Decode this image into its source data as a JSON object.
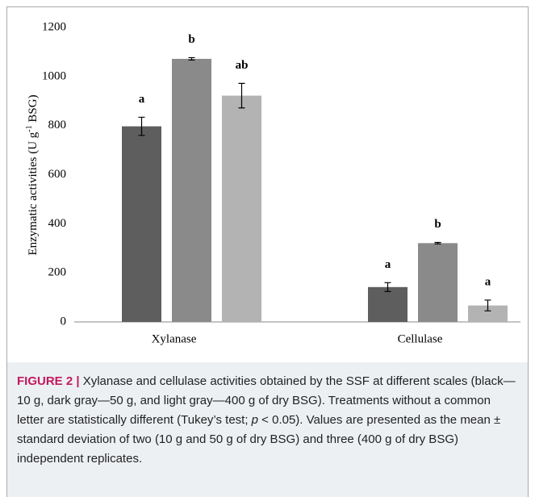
{
  "chart_data": {
    "type": "bar",
    "y_label": [
      "Enzymatic activities (U g",
      "-1",
      " BSG)"
    ],
    "categories": [
      "Xylanase",
      "Cellulase"
    ],
    "series": [
      {
        "color": "#5e5e5e",
        "values": [
          797,
          142
        ],
        "errors": [
          37,
          18
        ],
        "letters": [
          "a",
          "a"
        ]
      },
      {
        "color": "#8a8a8a",
        "values": [
          1072,
          321
        ],
        "errors": [
          5,
          3
        ],
        "letters": [
          "b",
          "b"
        ]
      },
      {
        "color": "#b3b3b3",
        "values": [
          922,
          67
        ],
        "errors": [
          50,
          22
        ],
        "letters": [
          "ab",
          "a"
        ]
      }
    ],
    "ylim": [
      0,
      1200
    ],
    "yticks": [
      0,
      200,
      400,
      600,
      800,
      1000,
      1200
    ],
    "grid": false
  },
  "caption": {
    "label": "FIGURE 2 |",
    "text_1": "Xylanase and cellulase activities obtained by the SSF at different scales (black—10 g, dark gray—50 g, and light gray—400 g of dry BSG). Treatments without a common letter are statistically different (Tukey’s test; ",
    "italic": "p",
    "text_2": " < 0.05). Values are presented as the mean ± standard deviation of two (10 g and 50 g of dry BSG) and three (400 g of dry BSG) independent replicates."
  }
}
